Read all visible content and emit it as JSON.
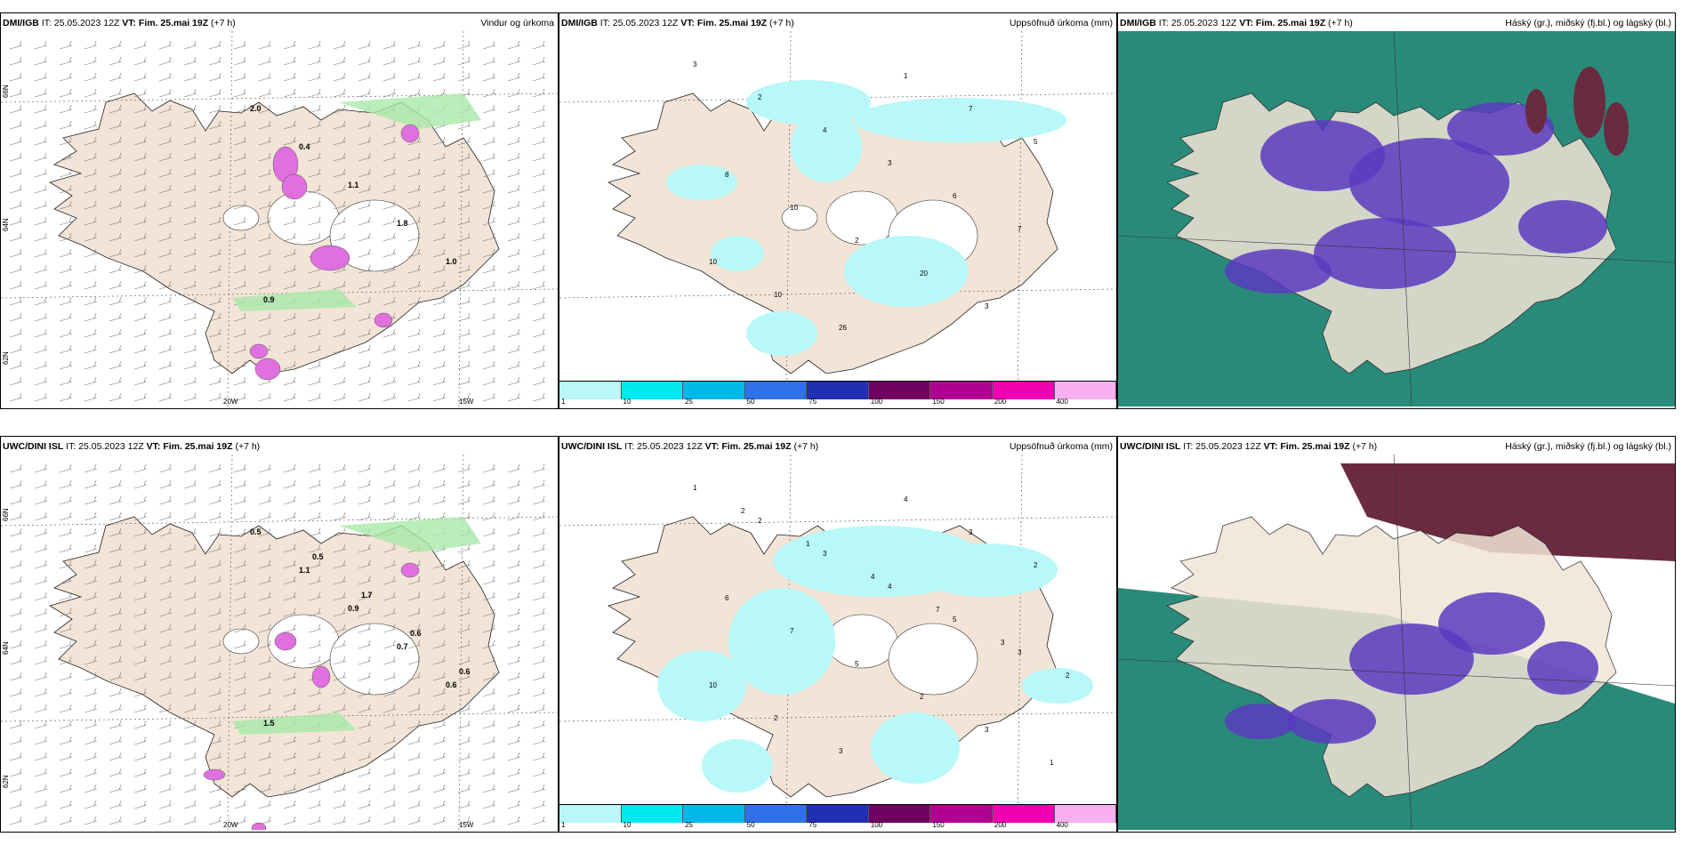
{
  "rows": [
    {
      "model": "DMI/IGB",
      "it": "IT: 25.05.2023 12Z",
      "vt_label": "VT:",
      "vt": "Fim. 25.mai 19Z",
      "lead": "(+7 h)",
      "titles": [
        "Vindur og úrkoma",
        "Uppsöfnuð úrkoma (mm)",
        "Háský (gr.), miðský (fj.bl.) og lágský (bl.)"
      ],
      "precip_labels": [
        "3",
        "2",
        "4",
        "3",
        "6",
        "7",
        "10",
        "10",
        "26",
        "1",
        "7",
        "5",
        "8",
        "10",
        "2",
        "20",
        "3"
      ],
      "wind_labels": [
        "2.0",
        "0.4",
        "1.1",
        "1.8",
        "1.0",
        "0.9"
      ]
    },
    {
      "model": "UWC/DINI ISL",
      "it": "IT: 25.05.2023 12Z",
      "vt_label": "VT:",
      "vt": "Fim. 25.mai 19Z",
      "lead": "(+7 h)",
      "titles": [
        "",
        "Uppsöfnuð úrkoma (mm)",
        "Háský (gr.), miðský (fj.bl.) og lágský (bl.)"
      ],
      "precip_labels": [
        "1",
        "2",
        "3",
        "4",
        "5",
        "3",
        "10",
        "2",
        "3",
        "4",
        "3",
        "2",
        "6",
        "7",
        "5",
        "2",
        "3",
        "1",
        "2",
        "1",
        "4",
        "7",
        "3",
        "2"
      ],
      "wind_labels": [
        "0.5",
        "1.1",
        "0.9",
        "0.7",
        "0.6",
        "1.5",
        "0.5",
        "1.7",
        "0.6",
        "0.6"
      ]
    }
  ],
  "lon_labels": [
    "20W",
    "15W"
  ],
  "lat_labels": [
    "66N",
    "64N",
    "62N"
  ],
  "colorbar": {
    "ticks": [
      "1",
      "10",
      "25",
      "50",
      "75",
      "100",
      "150",
      "200",
      "400"
    ],
    "colors": [
      "#b8f8f8",
      "#00e8f0",
      "#00b8e8",
      "#3070e8",
      "#2030b0",
      "#700060",
      "#b00090",
      "#f000b0",
      "#f8b0f0"
    ]
  },
  "colors": {
    "land": "#f2e4d6",
    "precip_light": "#b8f8f8",
    "wind_green": "#a8e8a8",
    "snow_magenta": "#e070e0",
    "cloud_high": "#6a2a40",
    "cloud_mid": "#5a3ac0",
    "cloud_low": "#2a8a7a"
  }
}
